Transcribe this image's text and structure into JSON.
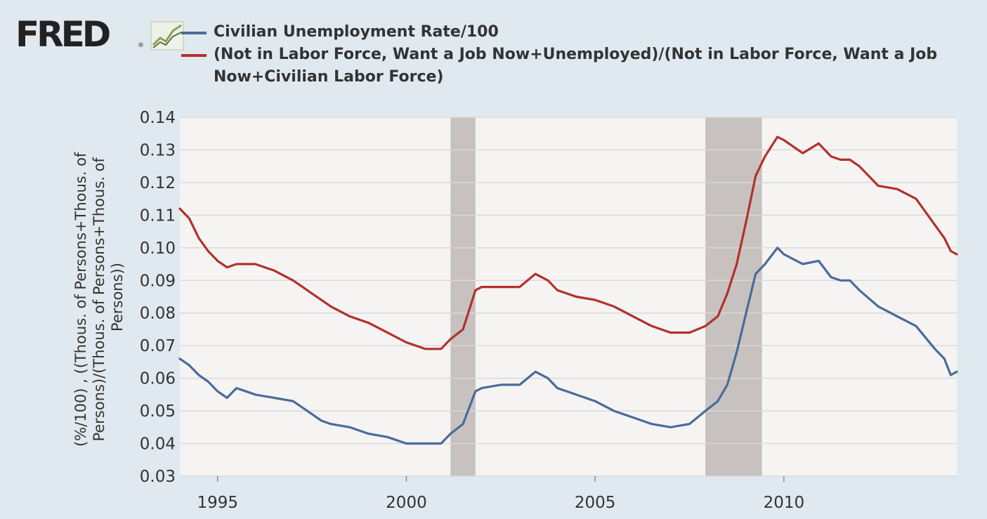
{
  "logo": {
    "text": "FRED",
    "registered_mark": "®",
    "icon": "line-chart-icon"
  },
  "colors": {
    "background": "#e1e9f0",
    "plot_background": "#f5f4f3",
    "gridline": "#d9d9d9",
    "recession": "#c7c2c0",
    "series1": "#4a6b99",
    "series2": "#b3302b",
    "text": "#333333"
  },
  "chart_data": {
    "type": "line",
    "title": "",
    "xlabel": "",
    "ylabel": "(%/100) , ((Thous. of Persons+Thous. of Persons)/(Thous. of Persons+Thous. of Persons))",
    "ylabel_lines": [
      "(%/100) , ((Thous. of Persons+Thous. of",
      "Persons)/(Thous. of Persons+Thous. of",
      "Persons))"
    ],
    "xlim": [
      1994.0,
      2014.58
    ],
    "ylim": [
      0.03,
      0.14
    ],
    "x_ticks": [
      1995,
      2000,
      2005,
      2010
    ],
    "x_tick_labels": [
      "1995",
      "2000",
      "2005",
      "2010"
    ],
    "y_ticks": [
      0.03,
      0.04,
      0.05,
      0.06,
      0.07,
      0.08,
      0.09,
      0.1,
      0.11,
      0.12,
      0.13,
      0.14
    ],
    "y_tick_labels": [
      "0.03",
      "0.04",
      "0.05",
      "0.06",
      "0.07",
      "0.08",
      "0.09",
      "0.10",
      "0.11",
      "0.12",
      "0.13",
      "0.14"
    ],
    "grid": true,
    "legend_position": "top",
    "recessions": [
      [
        2001.17,
        2001.83
      ],
      [
        2007.92,
        2009.42
      ]
    ],
    "series": [
      {
        "name": "Civilian Unemployment Rate/100",
        "color": "#4a6b99",
        "x": [
          1994.0,
          1994.25,
          1994.5,
          1994.75,
          1995.0,
          1995.25,
          1995.5,
          1995.75,
          1996.0,
          1996.5,
          1997.0,
          1997.25,
          1997.5,
          1997.75,
          1998.0,
          1998.5,
          1999.0,
          1999.5,
          2000.0,
          2000.5,
          2000.92,
          2001.17,
          2001.5,
          2001.83,
          2002.0,
          2002.5,
          2003.0,
          2003.42,
          2003.75,
          2004.0,
          2004.5,
          2005.0,
          2005.5,
          2006.0,
          2006.5,
          2007.0,
          2007.5,
          2007.92,
          2008.25,
          2008.5,
          2008.75,
          2009.0,
          2009.25,
          2009.5,
          2009.83,
          2010.0,
          2010.5,
          2010.92,
          2011.25,
          2011.5,
          2011.75,
          2012.0,
          2012.5,
          2013.0,
          2013.5,
          2014.0,
          2014.25,
          2014.42,
          2014.58
        ],
        "values": [
          0.066,
          0.064,
          0.061,
          0.059,
          0.056,
          0.054,
          0.057,
          0.056,
          0.055,
          0.054,
          0.053,
          0.051,
          0.049,
          0.047,
          0.046,
          0.045,
          0.043,
          0.042,
          0.04,
          0.04,
          0.04,
          0.043,
          0.046,
          0.056,
          0.057,
          0.058,
          0.058,
          0.062,
          0.06,
          0.057,
          0.055,
          0.053,
          0.05,
          0.048,
          0.046,
          0.045,
          0.046,
          0.05,
          0.053,
          0.058,
          0.068,
          0.08,
          0.092,
          0.095,
          0.1,
          0.098,
          0.095,
          0.096,
          0.091,
          0.09,
          0.09,
          0.087,
          0.082,
          0.079,
          0.076,
          0.069,
          0.066,
          0.061,
          0.062
        ]
      },
      {
        "name": "(Not in Labor Force, Want a Job Now+Unemployed)/(Not in Labor Force, Want a Job Now+Civilian Labor Force)",
        "color": "#b3302b",
        "x": [
          1994.0,
          1994.25,
          1994.5,
          1994.75,
          1995.0,
          1995.25,
          1995.5,
          1995.75,
          1996.0,
          1996.5,
          1997.0,
          1997.25,
          1997.5,
          1997.75,
          1998.0,
          1998.5,
          1999.0,
          1999.5,
          2000.0,
          2000.5,
          2000.92,
          2001.17,
          2001.5,
          2001.83,
          2002.0,
          2002.5,
          2003.0,
          2003.42,
          2003.75,
          2004.0,
          2004.5,
          2005.0,
          2005.5,
          2006.0,
          2006.5,
          2007.0,
          2007.5,
          2007.92,
          2008.25,
          2008.5,
          2008.75,
          2009.0,
          2009.25,
          2009.5,
          2009.83,
          2010.0,
          2010.5,
          2010.92,
          2011.25,
          2011.5,
          2011.75,
          2012.0,
          2012.5,
          2013.0,
          2013.5,
          2014.0,
          2014.25,
          2014.42,
          2014.58
        ],
        "values": [
          0.112,
          0.109,
          0.103,
          0.099,
          0.096,
          0.094,
          0.095,
          0.095,
          0.095,
          0.093,
          0.09,
          0.088,
          0.086,
          0.084,
          0.082,
          0.079,
          0.077,
          0.074,
          0.071,
          0.069,
          0.069,
          0.072,
          0.075,
          0.087,
          0.088,
          0.088,
          0.088,
          0.092,
          0.09,
          0.087,
          0.085,
          0.084,
          0.082,
          0.079,
          0.076,
          0.074,
          0.074,
          0.076,
          0.079,
          0.086,
          0.095,
          0.108,
          0.122,
          0.128,
          0.134,
          0.133,
          0.129,
          0.132,
          0.128,
          0.127,
          0.127,
          0.125,
          0.119,
          0.118,
          0.115,
          0.107,
          0.103,
          0.099,
          0.098
        ]
      }
    ]
  }
}
